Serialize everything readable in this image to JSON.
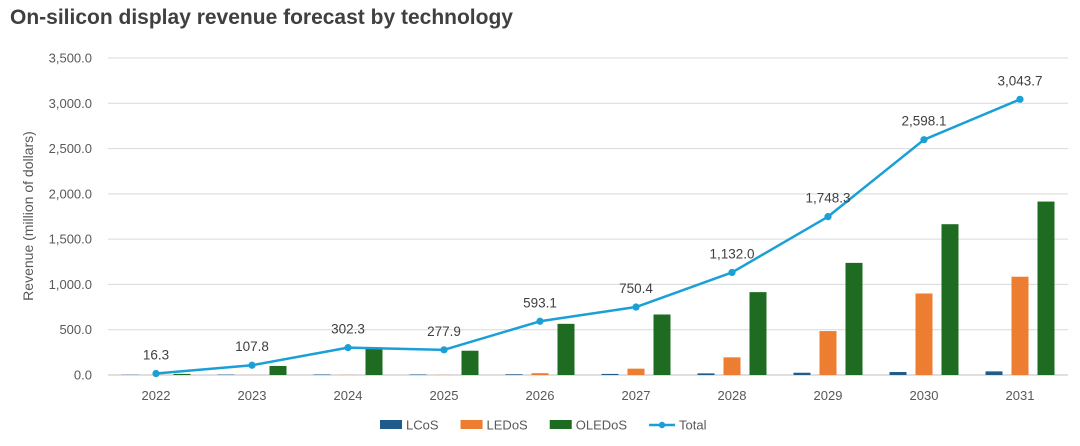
{
  "chart_data": {
    "type": "bar",
    "title": "On-silicon display revenue forecast by technology",
    "xlabel": "",
    "ylabel": "Revenue (million of dollars)",
    "ylim": [
      0,
      3500
    ],
    "ytick_step": 500,
    "ytick_labels": [
      "0.0",
      "500.0",
      "1,000.0",
      "1,500.0",
      "2,000.0",
      "2,500.0",
      "3,000.0",
      "3,500.0"
    ],
    "grid": true,
    "legend_position": "bottom",
    "categories": [
      "2022",
      "2023",
      "2024",
      "2025",
      "2026",
      "2027",
      "2028",
      "2029",
      "2030",
      "2031"
    ],
    "series": [
      {
        "name": "LCoS",
        "type": "bar",
        "color": "#1f5c8c",
        "values": [
          3,
          5,
          6,
          6,
          8,
          12,
          18,
          25,
          33,
          40
        ]
      },
      {
        "name": "LEDoS",
        "type": "bar",
        "color": "#ed7d31",
        "values": [
          1,
          1,
          2,
          2,
          20,
          70,
          195,
          485,
          900,
          1085
        ]
      },
      {
        "name": "OLEDoS",
        "type": "bar",
        "color": "#1e6b22",
        "values": [
          12,
          100,
          295,
          268,
          565,
          668,
          915,
          1238,
          1665,
          1915
        ]
      },
      {
        "name": "Total",
        "type": "line",
        "color": "#1a9fd6",
        "values": [
          16.3,
          107.8,
          302.3,
          277.9,
          593.1,
          750.4,
          1132.0,
          1748.3,
          2598.1,
          3043.7
        ]
      }
    ],
    "data_labels": [
      "16.3",
      "107.8",
      "302.3",
      "277.9",
      "593.1",
      "750.4",
      "1,132.0",
      "1,748.3",
      "2,598.1",
      "3,043.7"
    ]
  }
}
